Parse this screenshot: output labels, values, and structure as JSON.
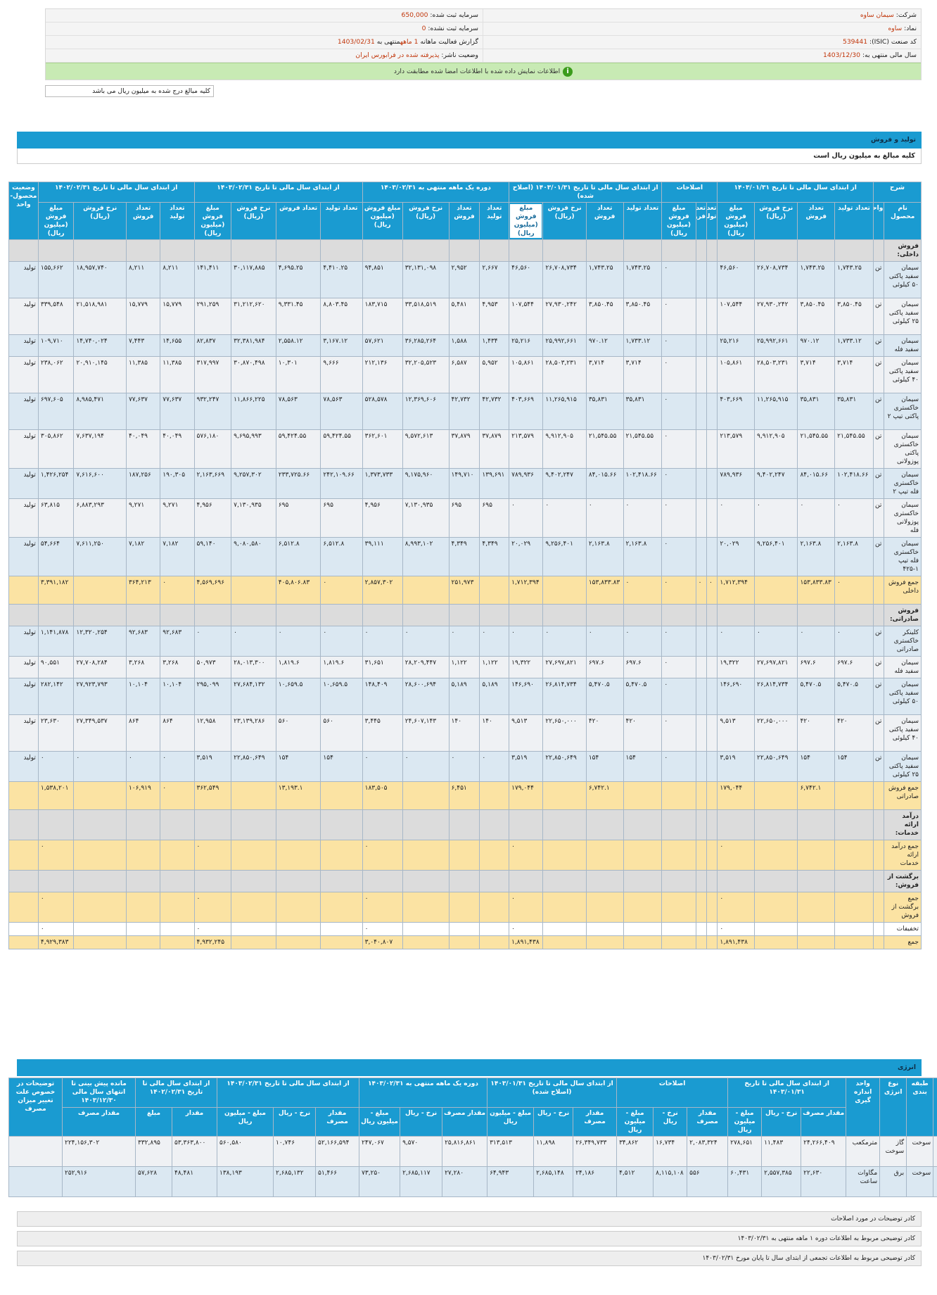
{
  "info": {
    "company_label": "شرکت:",
    "company": "سیمان ساوه",
    "capital_label": "سرمایه ثبت شده:",
    "capital": "650,000",
    "symbol_label": "نماد:",
    "symbol": "ساوه",
    "unreg_capital_label": "سرمایه ثبت نشده:",
    "unreg_capital": "0",
    "isic_label": "کد صنعت (ISIC):",
    "isic": "539441",
    "report_prefix": "گزارش فعالیت ماهانه",
    "report_months": "1 ماهه",
    "report_suffix": "منتهی به",
    "report_date": "1403/02/31",
    "fiscal_label": "سال مالی منتهی به:",
    "fiscal": "1403/12/30",
    "status_label": "وضعیت ناشر:",
    "status": "پذیرفته شده در فرابورس ایران",
    "ok_icon": "info-icon",
    "ok_message": "اطلاعات نمایش داده شده با اطلاعات امضا شده مطابقت دارد"
  },
  "note": "کلیه مبالغ درج شده به میلیون ریال می باشد",
  "production": {
    "title": "تولید و فروش",
    "subtitle": "کلیه مبالغ به میلیون ریال است",
    "group_headers": [
      "شرح",
      "از ابتدای سال مالی تا تاریخ ۱۴۰۳/۰۱/۳۱",
      "اصلاحات",
      "از ابتدای سال مالی تا تاریخ ۱۴۰۳/۰۱/۳۱ (اصلاح شده)",
      "دوره یک ماهه منتهی به ۱۴۰۳/۰۲/۳۱",
      "از ابتدای سال مالی تا تاریخ ۱۴۰۳/۰۲/۳۱",
      "از ابتدای سال مالی تا تاریخ ۱۴۰۲/۰۲/۳۱",
      "وضعیت محصول-واحد"
    ],
    "col_headers": [
      "نام محصول",
      "واحد",
      "تعداد تولید",
      "تعداد فروش",
      "نرخ فروش (ریال)",
      "مبلغ فروش (میلیون ریال)",
      "تعداد تولید",
      "تعداد فروش",
      "مبلغ فروش (میلیون ریال)",
      "تعداد تولید",
      "تعداد فروش",
      "نرخ فروش (ریال)",
      "مبلغ فروش (میلیون ریال)",
      "تعداد تولید",
      "تعداد فروش",
      "نرخ فروش (ریال)",
      "مبلغ فروش (میلیون ریال)",
      "تعداد تولید",
      "تعداد فروش",
      "نرخ فروش (ریال)",
      "مبلغ فروش (میلیون ریال)",
      "تعداد تولید",
      "تعداد فروش",
      "نرخ فروش (ریال)",
      "مبلغ فروش (میلیون ریال)",
      ""
    ],
    "rows": [
      {
        "t": "G",
        "c": [
          "فروش داخلی:",
          "",
          "",
          "",
          "",
          "",
          "",
          "",
          "",
          "",
          "",
          "",
          "",
          "",
          "",
          "",
          "",
          "",
          "",
          "",
          "",
          "",
          "",
          "",
          "",
          ""
        ]
      },
      {
        "t": "A",
        "c": [
          "سیمان سفید پاکتی ۵۰ کیلوئی",
          "تن",
          "۱,۷۴۳.۲۵",
          "۱,۷۴۳.۲۵",
          "۲۶,۷۰۸,۷۳۴",
          "۴۶,۵۶۰",
          "",
          "",
          "۰",
          "۱,۷۴۳.۲۵",
          "۱,۷۴۳.۲۵",
          "۲۶,۷۰۸,۷۳۴",
          "۴۶,۵۶۰",
          "۲,۶۶۷",
          "۲,۹۵۲",
          "۳۲,۱۳۱,۰۹۸",
          "۹۴,۸۵۱",
          "۴,۴۱۰.۲۵",
          "۴,۶۹۵.۲۵",
          "۳۰,۱۱۷,۸۸۵",
          "۱۴۱,۴۱۱",
          "۸,۲۱۱",
          "۸,۲۱۱",
          "۱۸,۹۵۷,۷۴۰",
          "۱۵۵,۶۶۲",
          "تولید"
        ]
      },
      {
        "t": "B",
        "c": [
          "سیمان سفید پاکتی ۲۵ کیلوئی",
          "تن",
          "۳,۸۵۰.۴۵",
          "۳,۸۵۰.۴۵",
          "۲۷,۹۳۰,۲۴۲",
          "۱۰۷,۵۴۴",
          "",
          "",
          "۰",
          "۳,۸۵۰.۴۵",
          "۳,۸۵۰.۴۵",
          "۲۷,۹۳۰,۲۴۲",
          "۱۰۷,۵۴۴",
          "۴,۹۵۳",
          "۵,۴۸۱",
          "۳۳,۵۱۸,۵۱۹",
          "۱۸۳,۷۱۵",
          "۸,۸۰۳.۴۵",
          "۹,۳۳۱.۴۵",
          "۳۱,۲۱۲,۶۲۰",
          "۲۹۱,۲۵۹",
          "۱۵,۷۷۹",
          "۱۵,۷۷۹",
          "۲۱,۵۱۸,۹۸۱",
          "۳۳۹,۵۴۸",
          "تولید"
        ]
      },
      {
        "t": "A",
        "c": [
          "سیمان سفید فله",
          "تن",
          "۱,۷۳۳.۱۲",
          "۹۷۰.۱۲",
          "۲۵,۹۹۲,۶۶۱",
          "۲۵,۲۱۶",
          "",
          "",
          "۰",
          "۱,۷۳۳.۱۲",
          "۹۷۰.۱۲",
          "۲۵,۹۹۲,۶۶۱",
          "۲۵,۲۱۶",
          "۱,۴۳۴",
          "۱,۵۸۸",
          "۳۶,۲۸۵,۲۶۴",
          "۵۷,۶۲۱",
          "۳,۱۶۷.۱۲",
          "۲,۵۵۸.۱۲",
          "۳۲,۳۸۱,۹۸۴",
          "۸۲,۸۳۷",
          "۱۴,۶۵۵",
          "۷,۴۴۳",
          "۱۴,۷۴۰,۰۲۴",
          "۱۰۹,۷۱۰",
          "تولید"
        ]
      },
      {
        "t": "B",
        "c": [
          "سیمان سفید پاکتی ۴۰ کیلوئی",
          "تن",
          "۳,۷۱۴",
          "۳,۷۱۴",
          "۲۸,۵۰۳,۲۳۱",
          "۱۰۵,۸۶۱",
          "",
          "",
          "۰",
          "۳,۷۱۴",
          "۳,۷۱۴",
          "۲۸,۵۰۳,۲۳۱",
          "۱۰۵,۸۶۱",
          "۵,۹۵۲",
          "۶,۵۸۷",
          "۳۲,۲۰۵,۵۲۳",
          "۲۱۲,۱۳۶",
          "۹,۶۶۶",
          "۱۰,۳۰۱",
          "۳۰,۸۷۰,۴۹۸",
          "۳۱۷,۹۹۷",
          "۱۱,۳۸۵",
          "۱۱,۳۸۵",
          "۲۰,۹۱۰,۱۴۵",
          "۲۳۸,۰۶۲",
          "تولید"
        ]
      },
      {
        "t": "A",
        "c": [
          "سیمان خاکستری پاکتی تیپ ۲",
          "تن",
          "۳۵,۸۳۱",
          "۳۵,۸۳۱",
          "۱۱,۲۶۵,۹۱۵",
          "۴۰۳,۶۶۹",
          "",
          "",
          "۰",
          "۳۵,۸۳۱",
          "۳۵,۸۳۱",
          "۱۱,۲۶۵,۹۱۵",
          "۴۰۳,۶۶۹",
          "۴۲,۷۳۲",
          "۴۲,۷۳۲",
          "۱۲,۳۶۹,۶۰۶",
          "۵۲۸,۵۷۸",
          "۷۸,۵۶۳",
          "۷۸,۵۶۳",
          "۱۱,۸۶۶,۲۲۵",
          "۹۳۲,۲۴۷",
          "۷۷,۶۳۷",
          "۷۷,۶۳۷",
          "۸,۹۸۵,۴۷۱",
          "۶۹۷,۶۰۵",
          "تولید"
        ]
      },
      {
        "t": "B",
        "c": [
          "سیمان خاکستری پاکتی پوزولانی",
          "تن",
          "۲۱,۵۴۵.۵۵",
          "۲۱,۵۴۵.۵۵",
          "۹,۹۱۲,۹۰۵",
          "۲۱۳,۵۷۹",
          "",
          "",
          "۰",
          "۲۱,۵۴۵.۵۵",
          "۲۱,۵۴۵.۵۵",
          "۹,۹۱۲,۹۰۵",
          "۲۱۳,۵۷۹",
          "۳۷,۸۷۹",
          "۳۷,۸۷۹",
          "۹,۵۷۲,۶۱۳",
          "۳۶۲,۶۰۱",
          "۵۹,۴۲۴.۵۵",
          "۵۹,۴۲۴.۵۵",
          "۹,۶۹۵,۹۹۳",
          "۵۷۶,۱۸۰",
          "۴۰,۰۴۹",
          "۴۰,۰۴۹",
          "۷,۶۳۷,۱۹۴",
          "۳۰۵,۸۶۲",
          "تولید"
        ]
      },
      {
        "t": "A",
        "c": [
          "سیمان خاکستری فله تیپ ۲",
          "تن",
          "۱۰۲,۴۱۸.۶۶",
          "۸۴,۰۱۵.۶۶",
          "۹,۴۰۲,۲۴۷",
          "۷۸۹,۹۳۶",
          "",
          "",
          "۰",
          "۱۰۲,۴۱۸.۶۶",
          "۸۴,۰۱۵.۶۶",
          "۹,۴۰۲,۲۴۷",
          "۷۸۹,۹۳۶",
          "۱۳۹,۶۹۱",
          "۱۴۹,۷۱۰",
          "۹,۱۷۵,۹۶۰",
          "۱,۳۷۳,۷۳۳",
          "۲۴۲,۱۰۹.۶۶",
          "۲۳۳,۷۲۵.۶۶",
          "۹,۲۵۷,۳۰۲",
          "۲,۱۶۳,۶۶۹",
          "۱۹۰,۳۰۵",
          "۱۸۷,۲۵۶",
          "۷,۶۱۶,۶۰۰",
          "۱,۴۲۶,۲۵۴",
          "تولید"
        ]
      },
      {
        "t": "B",
        "c": [
          "سیمان خاکستری پوزولانی فله",
          "تن",
          "۰",
          "۰",
          "۰",
          "۰",
          "",
          "",
          "۰",
          "۰",
          "۰",
          "۰",
          "۰",
          "۶۹۵",
          "۶۹۵",
          "۷,۱۳۰,۹۳۵",
          "۴,۹۵۶",
          "۶۹۵",
          "۶۹۵",
          "۷,۱۳۰,۹۳۵",
          "۴,۹۵۶",
          "۹,۲۷۱",
          "۹,۲۷۱",
          "۶,۸۸۳,۲۹۳",
          "۶۳,۸۱۵",
          "تولید"
        ]
      },
      {
        "t": "A",
        "c": [
          "سیمان خاکستری فله تیپ ۱-۴۲۵",
          "تن",
          "۲,۱۶۳.۸",
          "۲,۱۶۳.۸",
          "۹,۲۵۶,۴۰۱",
          "۲۰,۰۲۹",
          "",
          "",
          "۰",
          "۲,۱۶۳.۸",
          "۲,۱۶۳.۸",
          "۹,۲۵۶,۴۰۱",
          "۲۰,۰۲۹",
          "۴,۳۴۹",
          "۴,۳۴۹",
          "۸,۹۹۳,۱۰۲",
          "۳۹,۱۱۱",
          "۶,۵۱۲.۸",
          "۶,۵۱۲.۸",
          "۹,۰۸۰,۵۸۰",
          "۵۹,۱۴۰",
          "۷,۱۸۲",
          "۷,۱۸۲",
          "۷,۶۱۱,۲۵۰",
          "۵۴,۶۶۴",
          "تولید"
        ]
      },
      {
        "t": "Y",
        "c": [
          "جمع فروش داخلی",
          "",
          "۰",
          "۱۵۳,۸۳۳.۸۳",
          "",
          "۱,۷۱۲,۳۹۴",
          "۰",
          "۰",
          "۰",
          "۰",
          "۱۵۳,۸۳۳.۸۳",
          "",
          "۱,۷۱۲,۳۹۴",
          "",
          "۲۵۱,۹۷۳",
          "",
          "۲,۸۵۷,۳۰۲",
          "۰",
          "۴۰۵,۸۰۶.۸۳",
          "",
          "۴,۵۶۹,۶۹۶",
          "۰",
          "۳۶۴,۲۱۳",
          "",
          "۳,۳۹۱,۱۸۲",
          ""
        ]
      },
      {
        "t": "G",
        "c": [
          "فروش صادراتی:",
          "",
          "",
          "",
          "",
          "",
          "",
          "",
          "",
          "",
          "",
          "",
          "",
          "",
          "",
          "",
          "",
          "",
          "",
          "",
          "",
          "",
          "",
          "",
          "",
          ""
        ]
      },
      {
        "t": "A",
        "c": [
          "کلینکر خاکستری صادراتی",
          "تن",
          "۰",
          "۰",
          "۰",
          "۰",
          "",
          "",
          "۰",
          "۰",
          "۰",
          "۰",
          "۰",
          "۰",
          "۰",
          "۰",
          "۰",
          "۰",
          "۰",
          "۰",
          "۰",
          "۹۲,۶۸۳",
          "۹۲,۶۸۳",
          "۱۲,۳۲۰,۲۵۴",
          "۱,۱۴۱,۸۷۸",
          "تولید"
        ]
      },
      {
        "t": "B",
        "c": [
          "سیمان سفید فله",
          "تن",
          "۶۹۷.۶",
          "۶۹۷.۶",
          "۲۷,۶۹۷,۸۲۱",
          "۱۹,۳۲۲",
          "",
          "",
          "۰",
          "۶۹۷.۶",
          "۶۹۷.۶",
          "۲۷,۶۹۷,۸۲۱",
          "۱۹,۳۲۲",
          "۱,۱۲۲",
          "۱,۱۲۲",
          "۲۸,۲۰۹,۴۴۷",
          "۳۱,۶۵۱",
          "۱,۸۱۹.۶",
          "۱,۸۱۹.۶",
          "۲۸,۰۱۳,۳۰۰",
          "۵۰,۹۷۳",
          "۳,۲۶۸",
          "۳,۲۶۸",
          "۲۷,۷۰۸,۲۸۴",
          "۹۰,۵۵۱",
          "تولید"
        ]
      },
      {
        "t": "A",
        "c": [
          "سیمان سفید پاکتی ۵۰ کیلوئی",
          "تن",
          "۵,۴۷۰.۵",
          "۵,۴۷۰.۵",
          "۲۶,۸۱۴,۷۳۴",
          "۱۴۶,۶۹۰",
          "",
          "",
          "۰",
          "۵,۴۷۰.۵",
          "۵,۴۷۰.۵",
          "۲۶,۸۱۴,۷۳۴",
          "۱۴۶,۶۹۰",
          "۵,۱۸۹",
          "۵,۱۸۹",
          "۲۸,۶۰۰,۶۹۴",
          "۱۴۸,۴۰۹",
          "۱۰,۶۵۹.۵",
          "۱۰,۶۵۹.۵",
          "۲۷,۶۸۴,۱۳۲",
          "۲۹۵,۰۹۹",
          "۱۰,۱۰۴",
          "۱۰,۱۰۴",
          "۲۷,۹۲۳,۷۹۳",
          "۲۸۲,۱۴۲",
          "تولید"
        ]
      },
      {
        "t": "B",
        "c": [
          "سیمان سفید پاکتی ۴۰ کیلوئی",
          "تن",
          "۴۲۰",
          "۴۲۰",
          "۲۲,۶۵۰,۰۰۰",
          "۹,۵۱۳",
          "",
          "",
          "۰",
          "۴۲۰",
          "۴۲۰",
          "۲۲,۶۵۰,۰۰۰",
          "۹,۵۱۳",
          "۱۴۰",
          "۱۴۰",
          "۲۴,۶۰۷,۱۴۳",
          "۳,۴۴۵",
          "۵۶۰",
          "۵۶۰",
          "۲۳,۱۳۹,۲۸۶",
          "۱۲,۹۵۸",
          "۸۶۴",
          "۸۶۴",
          "۲۷,۳۴۹,۵۳۷",
          "۲۳,۶۳۰",
          "تولید"
        ]
      },
      {
        "t": "A",
        "c": [
          "سیمان سفید پاکتی ۲۵ کیلوئی",
          "تن",
          "۱۵۴",
          "۱۵۴",
          "۲۲,۸۵۰,۶۴۹",
          "۳,۵۱۹",
          "",
          "",
          "۰",
          "۱۵۴",
          "۱۵۴",
          "۲۲,۸۵۰,۶۴۹",
          "۳,۵۱۹",
          "۰",
          "۰",
          "۰",
          "۰",
          "۱۵۴",
          "۱۵۴",
          "۲۲,۸۵۰,۶۴۹",
          "۳,۵۱۹",
          "۰",
          "۰",
          "۰",
          "۰",
          "تولید"
        ]
      },
      {
        "t": "Y",
        "c": [
          "جمع فروش صادراتی",
          "",
          "",
          "۶,۷۴۲.۱",
          "",
          "۱۷۹,۰۴۴",
          "",
          "",
          "",
          "",
          "۶,۷۴۲.۱",
          "",
          "۱۷۹,۰۴۴",
          "",
          "۶,۴۵۱",
          "",
          "۱۸۳,۵۰۵",
          "",
          "۱۳,۱۹۳.۱",
          "",
          "۳۶۲,۵۴۹",
          "۰",
          "۱۰۶,۹۱۹",
          "",
          "۱,۵۳۸,۲۰۱",
          ""
        ]
      },
      {
        "t": "G",
        "c": [
          "درآمد ارائه خدمات:",
          "",
          "",
          "",
          "",
          "",
          "",
          "",
          "",
          "",
          "",
          "",
          "",
          "",
          "",
          "",
          "",
          "",
          "",
          "",
          "",
          "",
          "",
          "",
          "",
          ""
        ]
      },
      {
        "t": "Y",
        "c": [
          "جمع درآمد ارائه خدمات",
          "",
          "",
          "",
          "",
          "۰",
          "",
          "",
          "",
          "",
          "",
          "",
          "۰",
          "",
          "",
          "",
          "۰",
          "",
          "",
          "",
          "۰",
          "",
          "",
          "",
          "۰",
          ""
        ]
      },
      {
        "t": "G",
        "c": [
          "برگشت از فروش:",
          "",
          "",
          "",
          "",
          "",
          "",
          "",
          "",
          "",
          "",
          "",
          "",
          "",
          "",
          "",
          "",
          "",
          "",
          "",
          "",
          "",
          "",
          "",
          "",
          ""
        ]
      },
      {
        "t": "Y",
        "c": [
          "جمع برگشت از فروش",
          "",
          "",
          "",
          "",
          "۰",
          "",
          "",
          "",
          "",
          "",
          "",
          "۰",
          "",
          "",
          "",
          "۰",
          "",
          "",
          "",
          "۰",
          "",
          "",
          "",
          "۰",
          ""
        ]
      },
      {
        "t": "W",
        "c": [
          "تخفیفات",
          "",
          "",
          "",
          "",
          "۰",
          "",
          "",
          "",
          "",
          "",
          "",
          "۰",
          "",
          "",
          "",
          "۰",
          "",
          "",
          "",
          "۰",
          "",
          "",
          "",
          "۰",
          ""
        ]
      },
      {
        "t": "Y",
        "c": [
          "جمع",
          "",
          "",
          "",
          "",
          "۱,۸۹۱,۴۳۸",
          "",
          "",
          "",
          "",
          "",
          "",
          "۱,۸۹۱,۴۳۸",
          "",
          "",
          "",
          "۳,۰۴۰,۸۰۷",
          "",
          "",
          "",
          "۴,۹۳۲,۲۴۵",
          "",
          "",
          "",
          "۴,۹۲۹,۳۸۳",
          ""
        ]
      }
    ]
  },
  "energy": {
    "title": "انرژی",
    "group_headers": [
      "صنعت",
      "طبقه بندی",
      "نوع انرژی",
      "واحد اندازه گیری",
      "از ابتدای سال مالی تا تاریخ ۱۴۰۳/۰۱/۳۱",
      "اصلاحات",
      "از ابتدای سال مالی تا تاریخ ۱۴۰۳/۰۱/۳۱ (اصلاح شده)",
      "دوره یک ماهه منتهی به ۱۴۰۳/۰۲/۳۱",
      "از ابتدای سال مالی تا تاریخ ۱۴۰۳/۰۲/۳۱",
      "از ابتدای سال مالی تا تاریخ ۱۴۰۲/۰۲/۳۱",
      "مانده پیش بینی تا انتهای سال مالی ۱۴۰۳/۱۲/۳۰",
      "توضیحات در خصوص علت تغییر میزان مصرف"
    ],
    "col_headers": [
      "مقدار مصرف",
      "نرخ - ریال",
      "مبلغ - میلیون ریال",
      "مقدار مصرف",
      "نرخ - ریال",
      "مبلغ - میلیون ریال",
      "مقدار مصرف",
      "نرخ - ریال",
      "مبلغ - میلیون ریال",
      "مقدار مصرف",
      "نرخ - ریال",
      "مبلغ - میلیون ریال",
      "مقدار مصرف",
      "نرخ - ریال",
      "مبلغ - میلیون ریال",
      "مقدار",
      "مبلغ",
      "مقدار مصرف"
    ],
    "rows": [
      {
        "t": "B",
        "c": [
          "سیمان، آهک و گچ",
          "سوخت",
          "گاز سوخت",
          "مترمکعب",
          "۲۴,۲۶۶,۴۰۹",
          "۱۱,۴۸۳",
          "۲۷۸,۶۵۱",
          "۲,۰۸۳,۳۲۴",
          "۱۶,۷۳۴",
          "۳۴,۸۶۲",
          "۲۶,۳۴۹,۷۳۳",
          "۱۱,۸۹۸",
          "۳۱۳,۵۱۳",
          "۲۵,۸۱۶,۸۶۱",
          "۹,۵۷۰",
          "۲۴۷,۰۶۷",
          "۵۲,۱۶۶,۵۹۴",
          "۱۰,۷۴۶",
          "۵۶۰,۵۸۰",
          "۵۳,۳۶۳,۸۰۰",
          "۳۳۲,۸۹۵",
          "۲۲۴,۱۵۶,۳۰۲",
          ""
        ]
      },
      {
        "t": "A",
        "c": [
          "سیمان، آهک و گچ",
          "سوخت",
          "برق",
          "مگاوات ساعت",
          "۲۲,۶۳۰",
          "۲,۵۵۷,۳۸۵",
          "۶۰,۴۳۱",
          "۵۵۶",
          "۸,۱۱۵,۱۰۸",
          "۴,۵۱۲",
          "۲۴,۱۸۶",
          "۲,۶۸۵,۱۴۸",
          "۶۴,۹۴۳",
          "۲۷,۲۸۰",
          "۲,۶۸۵,۱۱۷",
          "۷۳,۲۵۰",
          "۵۱,۴۶۶",
          "۲,۶۸۵,۱۳۲",
          "۱۳۸,۱۹۳",
          "۴۸,۴۸۱",
          "۵۷,۶۲۸",
          "۲۵۲,۹۱۶",
          ""
        ]
      }
    ]
  },
  "footers": [
    "کادر توضیحات در مورد اصلاحات",
    "کادر توضیحی مربوط به اطلاعات دوره ۱ ماهه منتهی به ۱۴۰۳/۰۲/۳۱",
    "کادر توضیحی مربوط به اطلاعات تجمعی از ابتدای سال تا پایان مورخ ۱۴۰۳/۰۲/۳۱"
  ]
}
